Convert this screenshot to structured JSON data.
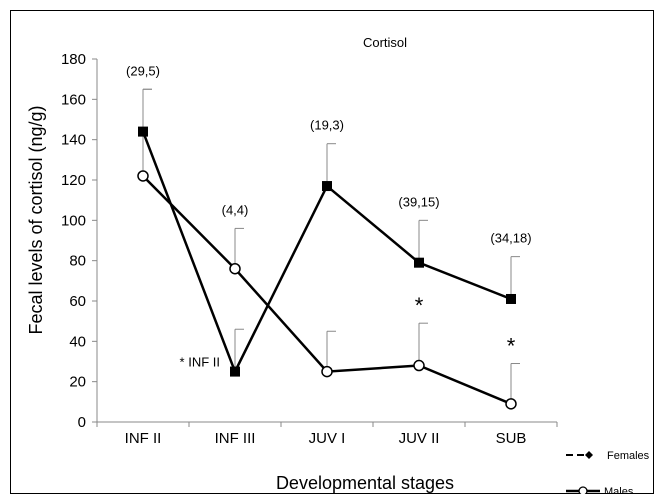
{
  "chart_data": {
    "type": "line",
    "title": "Cortisol",
    "xlabel": "Developmental stages",
    "ylabel": "Fecal levels of cortisol (ng/g)",
    "categories": [
      "INF II",
      "INF III",
      "JUV I",
      "JUV II",
      "SUB"
    ],
    "ylim": [
      0,
      180
    ],
    "yticks": [
      0,
      20,
      40,
      60,
      80,
      100,
      120,
      140,
      160,
      180
    ],
    "grid": false,
    "legend_position": "bottom-right",
    "series": [
      {
        "name": "Males",
        "marker": "filled-square",
        "values": [
          144,
          25,
          117,
          79,
          61
        ],
        "error_upper": [
          165,
          46,
          138,
          100,
          82
        ]
      },
      {
        "name": "Females",
        "marker": "open-circle",
        "values": [
          122,
          76,
          25,
          28,
          9
        ],
        "error_upper": [
          165,
          96,
          45,
          49,
          29
        ]
      }
    ],
    "sample_size_labels": [
      "(29,5)",
      "(4,4)",
      "(19,3)",
      "(39,15)",
      "(34,18)"
    ],
    "annotations": [
      {
        "text": "* INF II",
        "category": "INF III"
      },
      {
        "text": "*",
        "category": "JUV II"
      },
      {
        "text": "*",
        "category": "SUB"
      }
    ]
  }
}
